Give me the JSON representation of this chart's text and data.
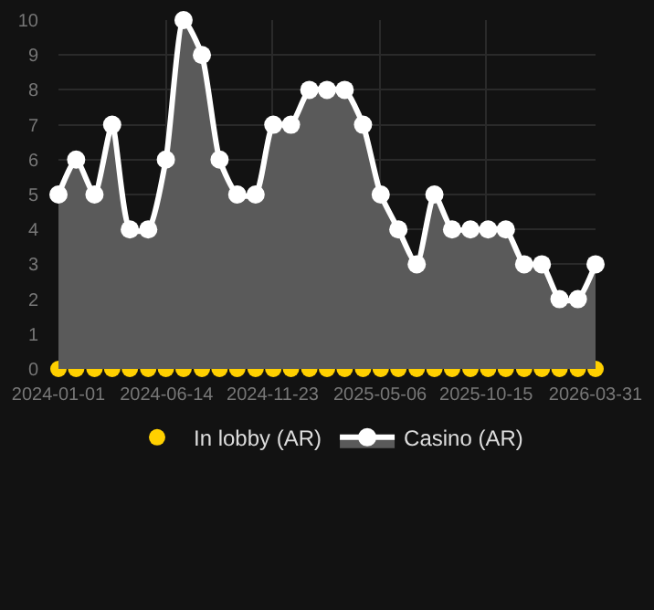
{
  "chart_data": {
    "type": "area",
    "x": [
      "2024-01-01",
      "2024-01-28",
      "2024-02-25",
      "2024-03-23",
      "2024-04-19",
      "2024-05-17",
      "2024-06-13",
      "2024-07-10",
      "2024-08-07",
      "2024-09-03",
      "2024-09-30",
      "2024-10-28",
      "2024-11-24",
      "2024-12-21",
      "2025-01-18",
      "2025-02-14",
      "2025-03-13",
      "2025-04-10",
      "2025-05-07",
      "2025-06-03",
      "2025-07-01",
      "2025-07-28",
      "2025-08-24",
      "2025-09-21",
      "2025-10-18",
      "2025-11-14",
      "2025-12-12",
      "2026-01-08",
      "2026-02-04",
      "2026-03-04",
      "2026-03-31"
    ],
    "series": [
      {
        "name": "In lobby (AR)",
        "color": "#ffd000",
        "type": "scatter",
        "values": [
          0,
          0,
          0,
          0,
          0,
          0,
          0,
          0,
          0,
          0,
          0,
          0,
          0,
          0,
          0,
          0,
          0,
          0,
          0,
          0,
          0,
          0,
          0,
          0,
          0,
          0,
          0,
          0,
          0,
          0,
          0
        ]
      },
      {
        "name": "Casino (AR)",
        "color": "#ffffff",
        "values": [
          5,
          6,
          5,
          7,
          4,
          4,
          6,
          10,
          9,
          6,
          5,
          5,
          7,
          7,
          8,
          8,
          8,
          7,
          5,
          4,
          3,
          5,
          4,
          4,
          4,
          4,
          3,
          3,
          2,
          2,
          3
        ]
      }
    ],
    "xlim": [
      "2024-01-01",
      "2026-03-31"
    ],
    "xticks": [
      "2024-01-01",
      "2024-06-14",
      "2024-11-23",
      "2025-05-06",
      "2025-10-15",
      "2026-03-31"
    ],
    "ylim": [
      0,
      10
    ],
    "yticks": [
      0,
      1,
      2,
      3,
      4,
      5,
      6,
      7,
      8,
      9,
      10
    ],
    "grid": true,
    "legend": "bottom",
    "marker": "circle",
    "line_style": "solid"
  }
}
